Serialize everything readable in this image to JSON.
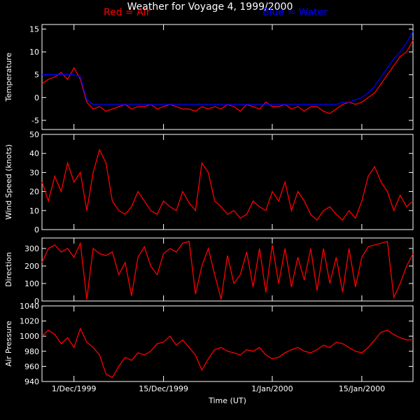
{
  "title": "Weather for Voyage 4, 1999/2000",
  "legend": {
    "red": "Red = Air",
    "blue": "Blue = Water"
  },
  "colors": {
    "air": "#ff0000",
    "water": "#0000ff",
    "axes": "#ffffff",
    "background": "#000000"
  },
  "chart_data": [
    {
      "type": "line",
      "panel": "temperature",
      "ylabel": "Temperature",
      "ylim": [
        -7,
        16
      ],
      "yticks": [
        -5,
        0,
        5,
        10,
        15
      ],
      "xlim_days": [
        0,
        58
      ],
      "series": [
        {
          "name": "Air",
          "color": "#ff0000",
          "x": [
            0,
            1,
            2,
            3,
            4,
            5,
            6,
            7,
            8,
            9,
            10,
            11,
            12,
            13,
            14,
            15,
            16,
            17,
            18,
            19,
            20,
            21,
            22,
            23,
            24,
            25,
            26,
            27,
            28,
            29,
            30,
            31,
            32,
            33,
            34,
            35,
            36,
            37,
            38,
            39,
            40,
            41,
            42,
            43,
            44,
            45,
            46,
            47,
            48,
            49,
            50,
            51,
            52,
            53,
            54,
            55,
            56,
            57,
            58
          ],
          "y": [
            3,
            4,
            4.5,
            5.5,
            4,
            6.5,
            4,
            -1,
            -2.5,
            -2,
            -3,
            -2.5,
            -2,
            -1.5,
            -2.5,
            -2,
            -2,
            -1.5,
            -2.5,
            -2,
            -1.5,
            -2,
            -2.5,
            -2.5,
            -3,
            -2,
            -2.5,
            -2,
            -2.5,
            -1.5,
            -2,
            -3,
            -1.5,
            -2,
            -2.5,
            -1,
            -2,
            -2,
            -1.5,
            -2.5,
            -2,
            -3,
            -2,
            -2,
            -3,
            -3.5,
            -2.5,
            -1.5,
            -1,
            -1.5,
            -1,
            0,
            1,
            3,
            5,
            7,
            9,
            10,
            12.5
          ]
        },
        {
          "name": "Water",
          "color": "#0000ff",
          "x": [
            0,
            1,
            2,
            3,
            4,
            5,
            6,
            7,
            8,
            9,
            10,
            11,
            12,
            13,
            14,
            15,
            16,
            17,
            18,
            19,
            20,
            21,
            22,
            23,
            24,
            25,
            26,
            27,
            28,
            29,
            30,
            31,
            32,
            33,
            34,
            35,
            36,
            37,
            38,
            39,
            40,
            41,
            42,
            43,
            44,
            45,
            46,
            47,
            48,
            49,
            50,
            51,
            52,
            53,
            54,
            55,
            56,
            57,
            58
          ],
          "y": [
            5,
            5,
            5,
            5,
            5,
            5,
            4.5,
            -0.5,
            -1.5,
            -1.5,
            -1.5,
            -1.5,
            -1.5,
            -1.5,
            -1.5,
            -1.5,
            -1.5,
            -1.5,
            -1.5,
            -1.5,
            -1.5,
            -1.5,
            -1.5,
            -1.5,
            -1.5,
            -1.5,
            -1.5,
            -1.5,
            -1.5,
            -1.5,
            -1.5,
            -1.5,
            -1.5,
            -1.5,
            -1.5,
            -1.5,
            -1.5,
            -1.5,
            -1.5,
            -1.5,
            -1.5,
            -1.5,
            -1.5,
            -1.5,
            -1.5,
            -1.5,
            -1.5,
            -1,
            -1,
            -0.5,
            0,
            1,
            2.5,
            4.5,
            6.5,
            8.5,
            10,
            12,
            14.5
          ]
        }
      ]
    },
    {
      "type": "line",
      "panel": "wind",
      "ylabel": "Wind Speed (knots)",
      "ylim": [
        0,
        50
      ],
      "yticks": [
        0,
        10,
        20,
        30,
        40,
        50
      ],
      "xlim_days": [
        0,
        58
      ],
      "series": [
        {
          "color": "#ff0000",
          "x": [
            0,
            1,
            2,
            3,
            4,
            5,
            6,
            7,
            8,
            9,
            10,
            11,
            12,
            13,
            14,
            15,
            16,
            17,
            18,
            19,
            20,
            21,
            22,
            23,
            24,
            25,
            26,
            27,
            28,
            29,
            30,
            31,
            32,
            33,
            34,
            35,
            36,
            37,
            38,
            39,
            40,
            41,
            42,
            43,
            44,
            45,
            46,
            47,
            48,
            49,
            50,
            51,
            52,
            53,
            54,
            55,
            56,
            57,
            58
          ],
          "y": [
            25,
            15,
            28,
            20,
            35,
            25,
            30,
            10,
            30,
            42,
            35,
            15,
            10,
            8,
            12,
            20,
            15,
            10,
            8,
            15,
            12,
            10,
            20,
            14,
            10,
            35,
            30,
            15,
            12,
            8,
            10,
            6,
            8,
            15,
            12,
            10,
            20,
            15,
            25,
            10,
            20,
            15,
            8,
            5,
            10,
            12,
            8,
            5,
            10,
            6,
            15,
            28,
            33,
            25,
            20,
            10,
            18,
            12,
            15
          ]
        }
      ]
    },
    {
      "type": "line",
      "panel": "direction",
      "ylabel": "Direction",
      "ylim": [
        0,
        360
      ],
      "yticks": [
        0,
        100,
        200,
        300
      ],
      "xlim_days": [
        0,
        58
      ],
      "series": [
        {
          "color": "#ff0000",
          "x": [
            0,
            1,
            2,
            3,
            4,
            5,
            6,
            7,
            8,
            9,
            10,
            11,
            12,
            13,
            14,
            15,
            16,
            17,
            18,
            19,
            20,
            21,
            22,
            23,
            24,
            25,
            26,
            27,
            28,
            29,
            30,
            31,
            32,
            33,
            34,
            35,
            36,
            37,
            38,
            39,
            40,
            41,
            42,
            43,
            44,
            45,
            46,
            47,
            48,
            49,
            50,
            51,
            52,
            53,
            54,
            55,
            56,
            57,
            58
          ],
          "y": [
            220,
            300,
            320,
            280,
            300,
            250,
            330,
            10,
            300,
            270,
            260,
            280,
            150,
            220,
            30,
            250,
            310,
            200,
            150,
            270,
            300,
            280,
            330,
            340,
            40,
            200,
            300,
            150,
            10,
            260,
            100,
            150,
            280,
            80,
            300,
            50,
            320,
            100,
            300,
            80,
            250,
            120,
            300,
            60,
            300,
            100,
            250,
            50,
            300,
            80,
            250,
            310,
            320,
            330,
            340,
            20,
            100,
            200,
            270
          ]
        }
      ]
    },
    {
      "type": "line",
      "panel": "pressure",
      "ylabel": "Air Pressure",
      "xlabel": "Time (UT)",
      "ylim": [
        940,
        1040
      ],
      "yticks": [
        940,
        960,
        980,
        1000,
        1020,
        1040
      ],
      "xlim_days": [
        0,
        58
      ],
      "xtick_labels": [
        "1/Dec/1999",
        "15/Dec/1999",
        "1/Jan/2000",
        "15/Jan/2000"
      ],
      "xtick_days": [
        5,
        19,
        36,
        50
      ],
      "series": [
        {
          "color": "#ff0000",
          "x": [
            0,
            1,
            2,
            3,
            4,
            5,
            6,
            7,
            8,
            9,
            10,
            11,
            12,
            13,
            14,
            15,
            16,
            17,
            18,
            19,
            20,
            21,
            22,
            23,
            24,
            25,
            26,
            27,
            28,
            29,
            30,
            31,
            32,
            33,
            34,
            35,
            36,
            37,
            38,
            39,
            40,
            41,
            42,
            43,
            44,
            45,
            46,
            47,
            48,
            49,
            50,
            51,
            52,
            53,
            54,
            55,
            56,
            57,
            58
          ],
          "y": [
            1000,
            1008,
            1002,
            990,
            998,
            985,
            1010,
            992,
            985,
            975,
            950,
            945,
            960,
            972,
            968,
            978,
            975,
            980,
            990,
            992,
            1000,
            988,
            995,
            985,
            975,
            955,
            970,
            982,
            985,
            980,
            978,
            975,
            982,
            980,
            985,
            975,
            970,
            972,
            978,
            982,
            985,
            980,
            978,
            982,
            988,
            985,
            992,
            990,
            985,
            980,
            978,
            985,
            995,
            1005,
            1008,
            1002,
            998,
            995,
            995
          ]
        }
      ]
    }
  ]
}
